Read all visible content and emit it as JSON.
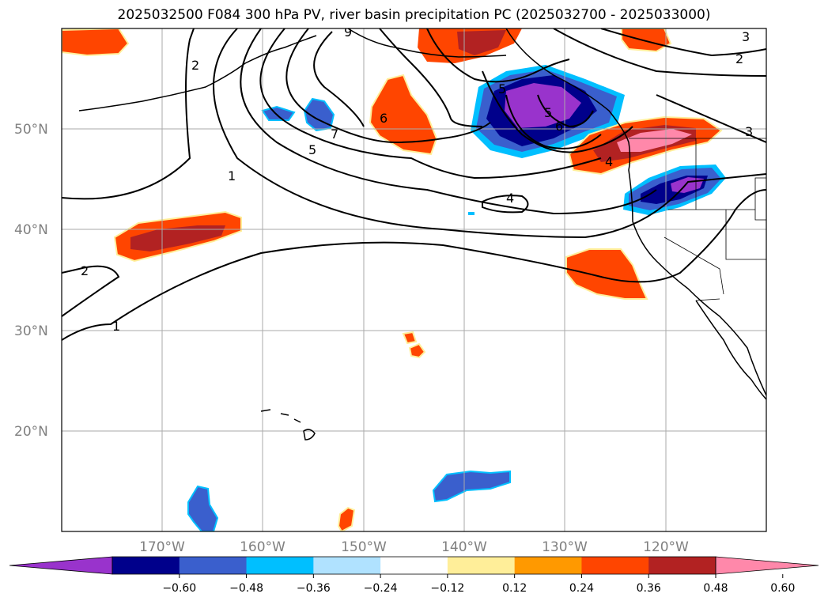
{
  "title": "2025032500 F084 300 hPa PV, river basin precipitation PC (2025032700 - 2025033000)",
  "map": {
    "lat_labels": [
      "50°N",
      "40°N",
      "30°N",
      "20°N"
    ],
    "lon_labels": [
      "170°W",
      "160°W",
      "150°W",
      "140°W",
      "130°W",
      "120°W"
    ],
    "contour_labels": [
      "1",
      "1",
      "2",
      "2",
      "2",
      "3",
      "3",
      "4",
      "4",
      "5",
      "5",
      "5",
      "6",
      "6",
      "7",
      "9"
    ]
  },
  "colorbar": {
    "tick_labels": [
      "−0.60",
      "−0.48",
      "−0.36",
      "−0.24",
      "−0.12",
      "0.12",
      "0.24",
      "0.36",
      "0.48",
      "0.60"
    ],
    "colors": [
      "#9933cc",
      "#00008b",
      "#3a5fcd",
      "#00bfff",
      "#b0e2ff",
      "#ffffff",
      "#ffee99",
      "#ff9900",
      "#ff4500",
      "#b22222",
      "#ff88aa"
    ]
  }
}
